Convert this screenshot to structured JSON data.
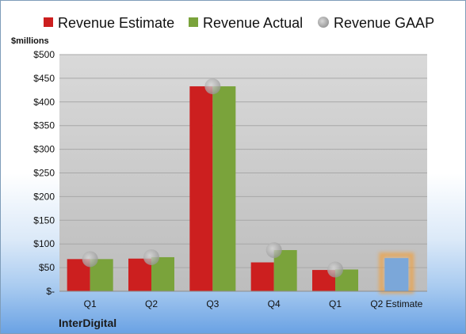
{
  "chart_data": {
    "type": "bar",
    "title": "",
    "unit_label": "$millions",
    "company": "InterDigital",
    "categories": [
      "Q1",
      "Q2",
      "Q3",
      "Q4",
      "Q1",
      "Q2 Estimate"
    ],
    "series": [
      {
        "name": "Revenue Estimate",
        "color": "#cc1f1f",
        "values": [
          68,
          69,
          433,
          61,
          45,
          null
        ]
      },
      {
        "name": "Revenue Actual",
        "color": "#7aa33b",
        "values": [
          68,
          72,
          433,
          87,
          46,
          null
        ]
      },
      {
        "name": "Revenue GAAP",
        "color": "#b0b0b0",
        "marker": "circle",
        "values": [
          68,
          72,
          433,
          87,
          46,
          null
        ]
      }
    ],
    "forecast": {
      "category": "Q2 Estimate",
      "value": 70,
      "color": "#7ba7d9",
      "glow": "#f0a040"
    },
    "ylim": [
      0,
      500
    ],
    "yticks": [
      {
        "value": 0,
        "label": "$-"
      },
      {
        "value": 50,
        "label": "$50"
      },
      {
        "value": 100,
        "label": "$100"
      },
      {
        "value": 150,
        "label": "$150"
      },
      {
        "value": 200,
        "label": "$200"
      },
      {
        "value": 250,
        "label": "$250"
      },
      {
        "value": 300,
        "label": "$300"
      },
      {
        "value": 350,
        "label": "$350"
      },
      {
        "value": 400,
        "label": "$400"
      },
      {
        "value": 450,
        "label": "$450"
      },
      {
        "value": 500,
        "label": "$500"
      }
    ],
    "grid": true,
    "legend": "top"
  }
}
